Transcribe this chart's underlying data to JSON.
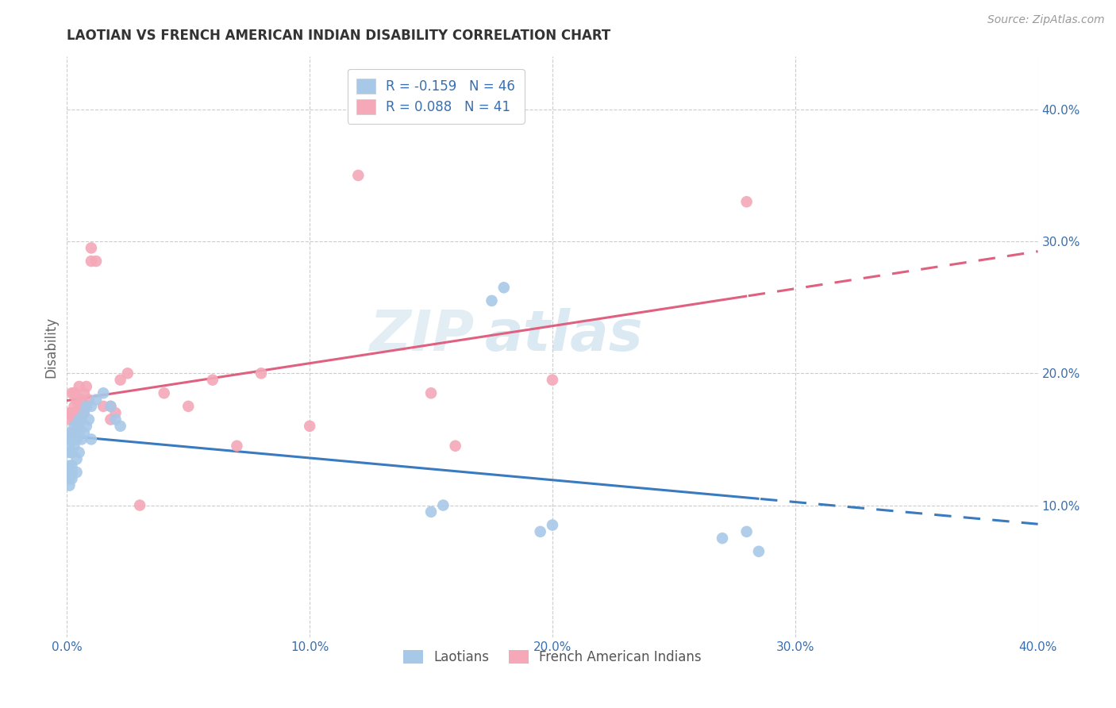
{
  "title": "LAOTIAN VS FRENCH AMERICAN INDIAN DISABILITY CORRELATION CHART",
  "source": "Source: ZipAtlas.com",
  "ylabel": "Disability",
  "xlim": [
    0.0,
    0.4
  ],
  "ylim": [
    0.0,
    0.44
  ],
  "x_ticks": [
    0.0,
    0.1,
    0.2,
    0.3,
    0.4
  ],
  "y_ticks_right": [
    0.1,
    0.2,
    0.3,
    0.4
  ],
  "x_tick_labels": [
    "0.0%",
    "10.0%",
    "20.0%",
    "30.0%",
    "40.0%"
  ],
  "y_tick_labels_right": [
    "10.0%",
    "20.0%",
    "30.0%",
    "40.0%"
  ],
  "laotian_R": -0.159,
  "laotian_N": 46,
  "french_R": 0.088,
  "french_N": 41,
  "laotian_color": "#a8c8e8",
  "french_color": "#f4a8b8",
  "laotian_line_color": "#3a7abf",
  "french_line_color": "#e06080",
  "watermark_zip": "ZIP",
  "watermark_atlas": "atlas",
  "laotian_x": [
    0.001,
    0.001,
    0.001,
    0.001,
    0.001,
    0.001,
    0.001,
    0.001,
    0.002,
    0.002,
    0.002,
    0.002,
    0.002,
    0.003,
    0.003,
    0.003,
    0.004,
    0.004,
    0.004,
    0.004,
    0.005,
    0.005,
    0.005,
    0.006,
    0.006,
    0.007,
    0.007,
    0.008,
    0.008,
    0.009,
    0.01,
    0.01,
    0.012,
    0.015,
    0.018,
    0.02,
    0.022,
    0.15,
    0.155,
    0.175,
    0.18,
    0.195,
    0.2,
    0.27,
    0.28,
    0.285
  ],
  "laotian_y": [
    0.115,
    0.12,
    0.125,
    0.13,
    0.14,
    0.145,
    0.15,
    0.155,
    0.12,
    0.125,
    0.13,
    0.14,
    0.15,
    0.145,
    0.155,
    0.16,
    0.125,
    0.135,
    0.15,
    0.16,
    0.14,
    0.155,
    0.165,
    0.15,
    0.165,
    0.155,
    0.17,
    0.16,
    0.175,
    0.165,
    0.15,
    0.175,
    0.18,
    0.185,
    0.175,
    0.165,
    0.16,
    0.095,
    0.1,
    0.255,
    0.265,
    0.08,
    0.085,
    0.075,
    0.08,
    0.065
  ],
  "french_x": [
    0.001,
    0.001,
    0.002,
    0.002,
    0.002,
    0.003,
    0.003,
    0.003,
    0.004,
    0.004,
    0.005,
    0.005,
    0.005,
    0.006,
    0.006,
    0.007,
    0.007,
    0.008,
    0.008,
    0.009,
    0.01,
    0.01,
    0.012,
    0.015,
    0.018,
    0.018,
    0.02,
    0.022,
    0.025,
    0.03,
    0.04,
    0.05,
    0.06,
    0.07,
    0.08,
    0.1,
    0.12,
    0.15,
    0.16,
    0.2,
    0.28
  ],
  "french_y": [
    0.165,
    0.17,
    0.155,
    0.17,
    0.185,
    0.165,
    0.175,
    0.185,
    0.17,
    0.18,
    0.16,
    0.175,
    0.19,
    0.165,
    0.18,
    0.17,
    0.185,
    0.175,
    0.19,
    0.18,
    0.285,
    0.295,
    0.285,
    0.175,
    0.165,
    0.175,
    0.17,
    0.195,
    0.2,
    0.1,
    0.185,
    0.175,
    0.195,
    0.145,
    0.2,
    0.16,
    0.35,
    0.185,
    0.145,
    0.195,
    0.33
  ]
}
